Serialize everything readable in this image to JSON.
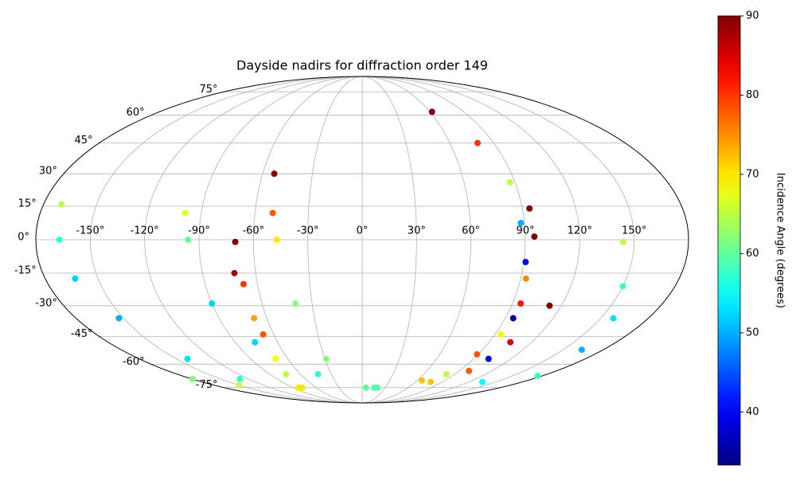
{
  "chart_data": {
    "type": "scatter",
    "projection": "mollweide",
    "colormap": "jet",
    "title": "Dayside nadirs for diffraction order 149",
    "colorbar": {
      "label": "Incidence Angle (degrees)",
      "lim": [
        33.3,
        90
      ],
      "ticks": [
        40,
        50,
        60,
        70,
        80,
        90
      ]
    },
    "grid": true,
    "xticks": [
      {
        "value": -150,
        "label": "-150°"
      },
      {
        "value": -120,
        "label": "-120°"
      },
      {
        "value": -90,
        "label": "-90°"
      },
      {
        "value": -60,
        "label": "-60°"
      },
      {
        "value": -30,
        "label": "-30°"
      },
      {
        "value": 0,
        "label": "0°"
      },
      {
        "value": 30,
        "label": "30°"
      },
      {
        "value": 60,
        "label": "60°"
      },
      {
        "value": 90,
        "label": "90°"
      },
      {
        "value": 120,
        "label": "120°"
      },
      {
        "value": 150,
        "label": "150°"
      }
    ],
    "yticks": [
      {
        "value": -75,
        "label": "-75°"
      },
      {
        "value": -60,
        "label": "-60°"
      },
      {
        "value": -45,
        "label": "-45°"
      },
      {
        "value": -30,
        "label": "-30°"
      },
      {
        "value": -15,
        "label": "-15°"
      },
      {
        "value": 0,
        "label": "0°"
      },
      {
        "value": 15,
        "label": "15°"
      },
      {
        "value": 30,
        "label": "30°"
      },
      {
        "value": 45,
        "label": "45°"
      },
      {
        "value": 60,
        "label": "60°"
      },
      {
        "value": 75,
        "label": "75°"
      }
    ],
    "tracks": [
      {
        "lon": [
          -170,
          -167,
          -163,
          -153,
          -141,
          -129
        ],
        "lat": [
          16,
          0,
          -17.5,
          -36,
          -57,
          -69
        ],
        "values": [
          65,
          57,
          52,
          50,
          53,
          58
        ]
      },
      {
        "lon": [
          -179,
          -148,
          -78
        ],
        "lat": [
          -69,
          -73,
          -75
        ],
        "values": [
          62,
          65,
          70
        ]
      },
      {
        "lon": [
          -99,
          -96,
          -90,
          -76,
          -43,
          5
        ],
        "lat": [
          12,
          0,
          -29,
          -48,
          -66,
          -75
        ],
        "values": [
          67,
          60,
          52,
          52,
          57,
          60
        ]
      },
      {
        "lon": [
          -70,
          -68,
          -68,
          -70,
          -83
        ],
        "lat": [
          -1,
          -20,
          -36,
          -57,
          -75
        ],
        "values": [
          90,
          80,
          74,
          68,
          70
        ]
      },
      {
        "lon": [
          -72,
          -67,
          -74
        ],
        "lat": [
          -15,
          -44,
          -66
        ],
        "values": [
          88,
          78,
          65
        ]
      },
      {
        "lon": [
          -53,
          -50,
          -47,
          -40,
          -29,
          16
        ],
        "lat": [
          30,
          12,
          0,
          -29,
          -57,
          -75
        ],
        "values": [
          90,
          78,
          70,
          62,
          62,
          58
        ]
      },
      {
        "lon": [
          62,
          79,
          87,
          88,
          91,
          95,
          102,
          135
        ],
        "lat": [
          62,
          45,
          26,
          7.5,
          -10,
          -36,
          -57,
          -71
        ],
        "values": [
          90,
          80,
          65,
          50,
          40,
          34,
          38,
          55
        ]
      },
      {
        "lon": [
          94,
          93,
          94,
          82,
          20
        ],
        "lat": [
          14,
          -17.5,
          -44,
          -66,
          -75
        ],
        "values": [
          90,
          75,
          68,
          65,
          60
        ]
      },
      {
        "lon": [
          95,
          95,
          89,
          65
        ],
        "lat": [
          1.4,
          -29,
          -54.5,
          -70
        ],
        "values": [
          90,
          82,
          78,
          72
        ]
      },
      {
        "lon": [
          113,
          105,
          99,
          77
        ],
        "lat": [
          -30,
          -48,
          -64,
          -71
        ],
        "values": [
          90,
          85,
          78,
          72
        ]
      },
      {
        "lon": [
          144,
          150,
          158,
          164,
          175
        ],
        "lat": [
          -1,
          -21,
          -36,
          -52,
          -67
        ],
        "values": [
          65,
          58,
          53,
          50,
          58
        ]
      }
    ]
  }
}
